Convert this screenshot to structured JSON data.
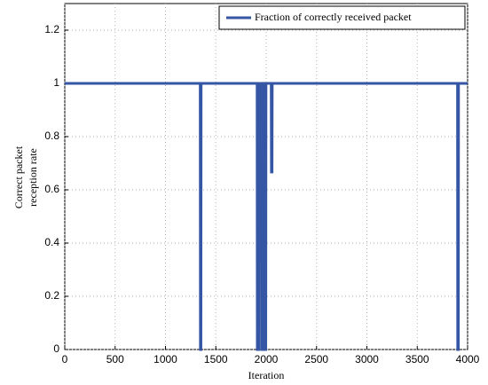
{
  "chart_data": {
    "type": "line",
    "xlabel": "Iteration",
    "ylabel": [
      "Correct packet",
      "reception rate"
    ],
    "series": [
      {
        "name": "Fraction of correctly received packet",
        "color": "#3556a4",
        "x": [
          0,
          1345,
          1347,
          1352,
          1354,
          1910,
          1912,
          1916,
          1918,
          1926,
          1928,
          1932,
          1934,
          1942,
          1944,
          1948,
          1950,
          1958,
          1960,
          1964,
          1966,
          1974,
          1976,
          1980,
          1982,
          1990,
          1992,
          1996,
          1998,
          2050,
          2052,
          2058,
          2060,
          3900,
          3902,
          3908,
          3910,
          4000
        ],
        "values": [
          1,
          1,
          0,
          0,
          1,
          1,
          0,
          0,
          1,
          1,
          0,
          0,
          1,
          1,
          0.333,
          0.333,
          1,
          1,
          0,
          0,
          1,
          1,
          0,
          0,
          1,
          1,
          0,
          0,
          1,
          1,
          0.667,
          0.667,
          1,
          1,
          0,
          0,
          1,
          1
        ]
      }
    ],
    "xlim": [
      0,
      4000
    ],
    "xticks": [
      0,
      500,
      1000,
      1500,
      2000,
      2500,
      3000,
      3500,
      4000
    ],
    "ylim": [
      0,
      1.3
    ],
    "yticks": [
      0,
      0.2,
      0.4,
      0.6,
      0.8,
      1,
      1.2
    ],
    "grid": true,
    "legend": "upper-right"
  }
}
